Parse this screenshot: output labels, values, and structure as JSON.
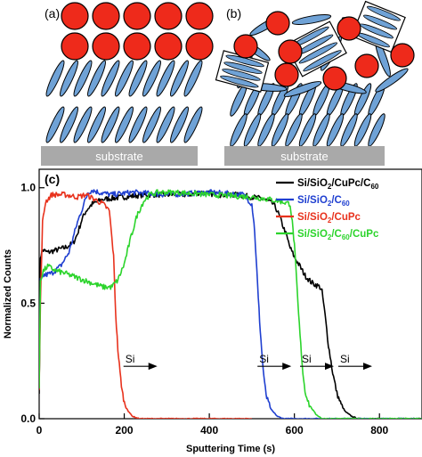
{
  "panels": {
    "a": {
      "label": "(a)",
      "substrate_label": "substrate"
    },
    "b": {
      "label": "(b)",
      "substrate_label": "substrate"
    }
  },
  "colors": {
    "sphere_fill": "#ee2a1b",
    "molecule_fill": "#6fa2d6",
    "substrate_fill": "#a9a9a9",
    "series_black": "#000000",
    "series_blue": "#1f3fd0",
    "series_red": "#e8321d",
    "series_green": "#2cd42c"
  },
  "chart_data": {
    "type": "line",
    "panel_label": "(c)",
    "xlabel": "Sputtering Time (s)",
    "ylabel": "Normalized Counts",
    "xlim": [
      0,
      900
    ],
    "ylim": [
      0,
      1.08
    ],
    "xticks": [
      0,
      200,
      400,
      600,
      800
    ],
    "yticks": [
      0.0,
      0.5,
      1.0
    ],
    "yticklabels": [
      "0.0",
      "0.5",
      "1.0"
    ],
    "legend_position": "top-right",
    "series": [
      {
        "name": "Si/SiO2/CuPc/C60",
        "color": "#000000",
        "points": [
          [
            0,
            0.12
          ],
          [
            3,
            0.7
          ],
          [
            8,
            0.73
          ],
          [
            20,
            0.72
          ],
          [
            40,
            0.73
          ],
          [
            60,
            0.74
          ],
          [
            80,
            0.76
          ],
          [
            90,
            0.8
          ],
          [
            100,
            0.86
          ],
          [
            110,
            0.9
          ],
          [
            125,
            0.93
          ],
          [
            150,
            0.95
          ],
          [
            200,
            0.96
          ],
          [
            250,
            0.97
          ],
          [
            300,
            0.97
          ],
          [
            350,
            0.97
          ],
          [
            380,
            0.98
          ],
          [
            420,
            0.97
          ],
          [
            460,
            0.97
          ],
          [
            500,
            0.96
          ],
          [
            530,
            0.95
          ],
          [
            550,
            0.93
          ],
          [
            560,
            0.9
          ],
          [
            570,
            0.85
          ],
          [
            580,
            0.8
          ],
          [
            590,
            0.74
          ],
          [
            600,
            0.7
          ],
          [
            610,
            0.67
          ],
          [
            625,
            0.62
          ],
          [
            640,
            0.59
          ],
          [
            660,
            0.57
          ],
          [
            665,
            0.55
          ],
          [
            672,
            0.45
          ],
          [
            680,
            0.32
          ],
          [
            690,
            0.2
          ],
          [
            700,
            0.11
          ],
          [
            710,
            0.06
          ],
          [
            720,
            0.03
          ],
          [
            735,
            0.01
          ],
          [
            750,
            0.0
          ],
          [
            800,
            0.0
          ],
          [
            900,
            0.0
          ]
        ]
      },
      {
        "name": "Si/SiO2/C60",
        "color": "#1f3fd0",
        "points": [
          [
            0,
            0.12
          ],
          [
            3,
            0.6
          ],
          [
            10,
            0.62
          ],
          [
            30,
            0.63
          ],
          [
            50,
            0.66
          ],
          [
            70,
            0.72
          ],
          [
            90,
            0.85
          ],
          [
            105,
            0.93
          ],
          [
            115,
            0.98
          ],
          [
            125,
            0.99
          ],
          [
            140,
            0.98
          ],
          [
            170,
            0.97
          ],
          [
            220,
            0.98
          ],
          [
            300,
            0.97
          ],
          [
            400,
            0.98
          ],
          [
            480,
            0.97
          ],
          [
            500,
            0.93
          ],
          [
            505,
            0.85
          ],
          [
            510,
            0.7
          ],
          [
            515,
            0.52
          ],
          [
            520,
            0.38
          ],
          [
            525,
            0.25
          ],
          [
            530,
            0.15
          ],
          [
            535,
            0.09
          ],
          [
            545,
            0.04
          ],
          [
            560,
            0.01
          ],
          [
            575,
            0.0
          ],
          [
            900,
            0.0
          ]
        ]
      },
      {
        "name": "Si/SiO2/CuPc",
        "color": "#e8321d",
        "points": [
          [
            0,
            0.12
          ],
          [
            3,
            0.5
          ],
          [
            8,
            0.85
          ],
          [
            15,
            0.94
          ],
          [
            30,
            0.97
          ],
          [
            60,
            0.97
          ],
          [
            90,
            0.96
          ],
          [
            110,
            0.97
          ],
          [
            130,
            0.95
          ],
          [
            150,
            0.93
          ],
          [
            165,
            0.9
          ],
          [
            175,
            0.7
          ],
          [
            180,
            0.45
          ],
          [
            185,
            0.3
          ],
          [
            190,
            0.2
          ],
          [
            195,
            0.12
          ],
          [
            200,
            0.07
          ],
          [
            210,
            0.03
          ],
          [
            220,
            0.01
          ],
          [
            235,
            0.0
          ],
          [
            500,
            0.0
          ]
        ]
      },
      {
        "name": "Si/SiO2/C60/CuPc",
        "color": "#2cd42c",
        "points": [
          [
            0,
            0.12
          ],
          [
            3,
            0.6
          ],
          [
            10,
            0.64
          ],
          [
            20,
            0.66
          ],
          [
            40,
            0.64
          ],
          [
            60,
            0.63
          ],
          [
            90,
            0.61
          ],
          [
            120,
            0.59
          ],
          [
            150,
            0.57
          ],
          [
            170,
            0.57
          ],
          [
            185,
            0.6
          ],
          [
            200,
            0.67
          ],
          [
            215,
            0.78
          ],
          [
            230,
            0.88
          ],
          [
            245,
            0.94
          ],
          [
            260,
            0.97
          ],
          [
            280,
            0.98
          ],
          [
            320,
            0.98
          ],
          [
            400,
            0.97
          ],
          [
            500,
            0.96
          ],
          [
            540,
            0.95
          ],
          [
            570,
            0.94
          ],
          [
            590,
            0.93
          ],
          [
            595,
            0.85
          ],
          [
            600,
            0.75
          ],
          [
            605,
            0.6
          ],
          [
            610,
            0.45
          ],
          [
            615,
            0.32
          ],
          [
            620,
            0.2
          ],
          [
            625,
            0.12
          ],
          [
            635,
            0.06
          ],
          [
            650,
            0.02
          ],
          [
            665,
            0.0
          ],
          [
            900,
            0.0
          ]
        ]
      }
    ],
    "annotations": [
      {
        "text": "Si",
        "x": 215,
        "y": 0.25
      },
      {
        "text": "Si",
        "x": 530,
        "y": 0.25
      },
      {
        "text": "Si",
        "x": 630,
        "y": 0.25
      },
      {
        "text": "Si",
        "x": 720,
        "y": 0.25
      }
    ]
  }
}
